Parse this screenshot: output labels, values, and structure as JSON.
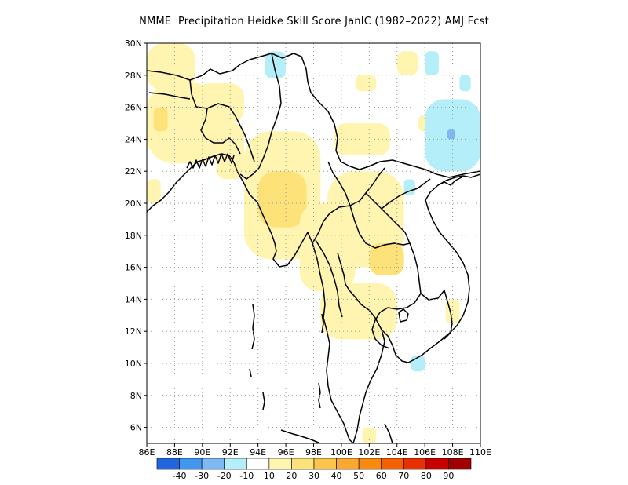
{
  "title": "NMME  Precipitation Heidke Skill Score JanIC (1982–2022) AMJ Fcst",
  "map": {
    "lon_range": [
      86,
      110
    ],
    "lat_range": [
      5,
      30
    ],
    "lat_ticks": [
      {
        "value": 30,
        "label": "30N"
      },
      {
        "value": 28,
        "label": "28N"
      },
      {
        "value": 26,
        "label": "26N"
      },
      {
        "value": 24,
        "label": "24N"
      },
      {
        "value": 22,
        "label": "22N"
      },
      {
        "value": 20,
        "label": "20N"
      },
      {
        "value": 18,
        "label": "18N"
      },
      {
        "value": 16,
        "label": "16N"
      },
      {
        "value": 14,
        "label": "14N"
      },
      {
        "value": 12,
        "label": "12N"
      },
      {
        "value": 10,
        "label": "10N"
      },
      {
        "value": 8,
        "label": "8N"
      },
      {
        "value": 6,
        "label": "6N"
      }
    ],
    "lon_ticks": [
      {
        "value": 86,
        "label": "86E"
      },
      {
        "value": 88,
        "label": "88E"
      },
      {
        "value": 90,
        "label": "90E"
      },
      {
        "value": 92,
        "label": "92E"
      },
      {
        "value": 94,
        "label": "94E"
      },
      {
        "value": 96,
        "label": "96E"
      },
      {
        "value": 98,
        "label": "98E"
      },
      {
        "value": 100,
        "label": "100E"
      },
      {
        "value": 102,
        "label": "102E"
      },
      {
        "value": 104,
        "label": "104E"
      },
      {
        "value": 106,
        "label": "106E"
      },
      {
        "value": 108,
        "label": "108E"
      },
      {
        "value": 110,
        "label": "110E"
      }
    ],
    "grid": true
  },
  "colorbar": {
    "colors": [
      "#2166e0",
      "#4196f0",
      "#7db9f5",
      "#b4eef8",
      "#ffffff",
      "#fff5b0",
      "#fde27a",
      "#fcc44d",
      "#fba830",
      "#f98a10",
      "#f56000",
      "#e83000",
      "#c80000",
      "#a00000"
    ],
    "labels": [
      "-40",
      "-30",
      "-20",
      "-10",
      "10",
      "20",
      "30",
      "40",
      "50",
      "60",
      "70",
      "80",
      "90"
    ]
  },
  "chart_data": {
    "type": "heatmap",
    "title": "NMME  Precipitation Heidke Skill Score JanIC (1982–2022) AMJ Fcst",
    "x_range": [
      86,
      110
    ],
    "y_range": [
      5,
      30
    ],
    "color_levels": [
      -40,
      -30,
      -20,
      -10,
      10,
      20,
      30,
      40,
      50,
      60,
      70,
      80,
      90
    ],
    "regions": [
      {
        "category": "10-20",
        "lon": [
          86.0,
          89.5
        ],
        "lat": [
          27.0,
          30.0
        ]
      },
      {
        "category": "10-20",
        "lon": [
          86.0,
          91.5
        ],
        "lat": [
          22.5,
          27.5
        ]
      },
      {
        "category": "20-30",
        "lon": [
          86.5,
          87.5
        ],
        "lat": [
          24.5,
          26.0
        ]
      },
      {
        "category": "10-20",
        "lon": [
          89.5,
          93.0
        ],
        "lat": [
          25.0,
          27.5
        ]
      },
      {
        "category": "10-20",
        "lon": [
          91.0,
          93.0
        ],
        "lat": [
          21.5,
          25.0
        ]
      },
      {
        "category": "10-20",
        "lon": [
          93.0,
          98.5
        ],
        "lat": [
          16.5,
          24.5
        ]
      },
      {
        "category": "20-30",
        "lon": [
          94.0,
          97.5
        ],
        "lat": [
          18.5,
          22.0
        ]
      },
      {
        "category": "10-20",
        "lon": [
          97.0,
          101.0
        ],
        "lat": [
          14.5,
          20.0
        ]
      },
      {
        "category": "10-20",
        "lon": [
          98.5,
          104.0
        ],
        "lat": [
          11.5,
          15.0
        ]
      },
      {
        "category": "10-20",
        "lon": [
          99.5,
          103.5
        ],
        "lat": [
          23.0,
          25.0
        ]
      },
      {
        "category": "10-20",
        "lon": [
          99.0,
          104.5
        ],
        "lat": [
          16.0,
          22.0
        ]
      },
      {
        "category": "20-30",
        "lon": [
          102.0,
          104.5
        ],
        "lat": [
          15.5,
          17.5
        ]
      },
      {
        "category": "10-20",
        "lon": [
          105.5,
          107.5
        ],
        "lat": [
          24.5,
          25.5
        ]
      },
      {
        "category": "10-20",
        "lon": [
          101.0,
          102.5
        ],
        "lat": [
          27.0,
          28.0
        ]
      },
      {
        "category": "10-20",
        "lon": [
          86.0,
          87.0
        ],
        "lat": [
          20.0,
          21.5
        ]
      },
      {
        "category": "10-20",
        "lon": [
          104.0,
          105.5
        ],
        "lat": [
          28.0,
          29.5
        ]
      },
      {
        "category": "10-20",
        "lon": [
          107.5,
          108.5
        ],
        "lat": [
          12.5,
          14.0
        ]
      },
      {
        "category": "10-20",
        "lon": [
          101.5,
          102.5
        ],
        "lat": [
          5.0,
          6.0
        ]
      },
      {
        "category": "-10--20",
        "lon": [
          94.5,
          96.0
        ],
        "lat": [
          27.8,
          29.5
        ]
      },
      {
        "category": "-10--20",
        "lon": [
          106.0,
          110.0
        ],
        "lat": [
          22.0,
          26.5
        ]
      },
      {
        "category": "-20--30",
        "lon": [
          107.6,
          108.2
        ],
        "lat": [
          24.0,
          24.6
        ]
      },
      {
        "category": "-10--20",
        "lon": [
          106.0,
          107.0
        ],
        "lat": [
          28.0,
          29.5
        ]
      },
      {
        "category": "-10--20",
        "lon": [
          108.5,
          109.3
        ],
        "lat": [
          27.0,
          28.0
        ]
      },
      {
        "category": "-10--20",
        "lon": [
          104.5,
          105.3
        ],
        "lat": [
          20.5,
          21.5
        ]
      },
      {
        "category": "-10--20",
        "lon": [
          105.0,
          106.0
        ],
        "lat": [
          9.5,
          10.5
        ]
      }
    ]
  }
}
